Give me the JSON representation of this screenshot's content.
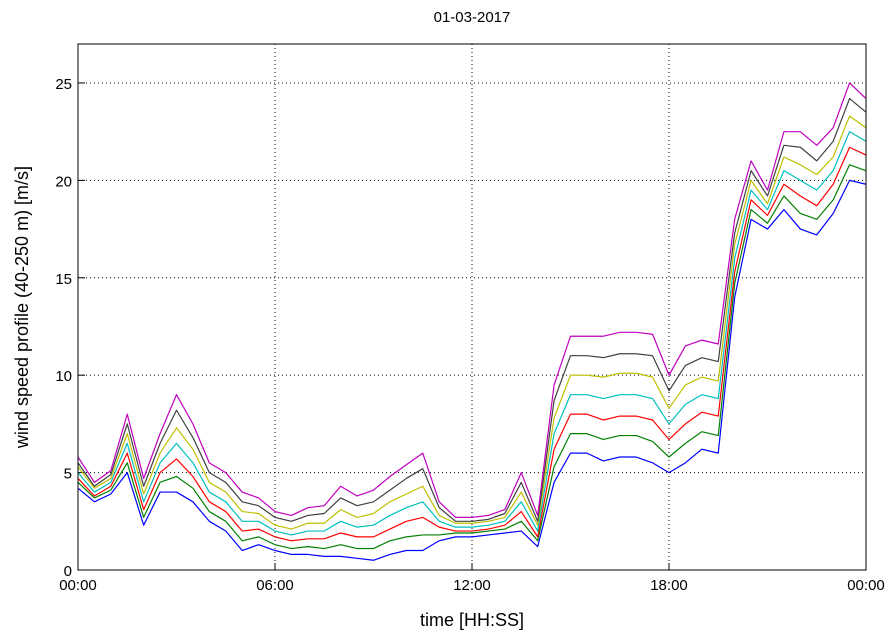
{
  "chart_data": {
    "type": "line",
    "title": "01-03-2017",
    "xlabel": "time  [HH:SS]",
    "ylabel": "wind speed profile (40-250 m) [m/s]",
    "x": [
      0,
      0.5,
      1,
      1.5,
      2,
      2.5,
      3,
      3.5,
      4,
      4.5,
      5,
      5.5,
      6,
      6.5,
      7,
      7.5,
      8,
      8.5,
      9,
      9.5,
      10,
      10.5,
      11,
      11.5,
      12,
      12.5,
      13,
      13.5,
      14,
      14.5,
      15,
      15.5,
      16,
      16.5,
      17,
      17.5,
      18,
      18.5,
      19,
      19.5,
      20,
      20.5,
      21,
      21.5,
      22,
      22.5,
      23,
      23.5,
      24
    ],
    "series": [
      {
        "color": "#0000ff",
        "values": [
          4.2,
          3.5,
          3.9,
          5.0,
          2.3,
          4.0,
          4.0,
          3.5,
          2.5,
          2.0,
          1.0,
          1.3,
          1.0,
          0.8,
          0.8,
          0.7,
          0.7,
          0.6,
          0.5,
          0.8,
          1.0,
          1.0,
          1.5,
          1.7,
          1.7,
          1.8,
          1.9,
          2.0,
          1.2,
          4.5,
          6.0,
          6.0,
          5.6,
          5.8,
          5.8,
          5.5,
          5.0,
          5.5,
          6.2,
          6.0,
          14.0,
          18.0,
          17.5,
          18.5,
          17.5,
          17.2,
          18.3,
          20.0,
          19.8
        ]
      },
      {
        "color": "#008000",
        "values": [
          4.5,
          3.7,
          4.1,
          5.5,
          2.7,
          4.5,
          4.8,
          4.2,
          3.0,
          2.5,
          1.5,
          1.7,
          1.3,
          1.1,
          1.2,
          1.1,
          1.3,
          1.1,
          1.1,
          1.5,
          1.7,
          1.8,
          1.8,
          1.9,
          1.9,
          2.0,
          2.1,
          2.5,
          1.5,
          5.3,
          7.0,
          7.0,
          6.7,
          6.9,
          6.9,
          6.6,
          5.8,
          6.5,
          7.1,
          6.9,
          14.7,
          18.5,
          17.8,
          19.2,
          18.3,
          18.0,
          19.0,
          20.8,
          20.5
        ]
      },
      {
        "color": "#ff0000",
        "values": [
          4.7,
          3.8,
          4.3,
          6.0,
          3.1,
          5.0,
          5.7,
          4.8,
          3.5,
          3.0,
          2.0,
          2.1,
          1.7,
          1.5,
          1.6,
          1.6,
          1.9,
          1.7,
          1.7,
          2.1,
          2.5,
          2.7,
          2.2,
          2.0,
          2.0,
          2.1,
          2.3,
          3.0,
          1.7,
          6.2,
          8.0,
          8.0,
          7.7,
          7.9,
          7.9,
          7.7,
          6.7,
          7.5,
          8.1,
          7.9,
          15.3,
          19.0,
          18.2,
          19.8,
          19.2,
          18.7,
          19.8,
          21.7,
          21.3
        ]
      },
      {
        "color": "#00bfbf",
        "values": [
          5.0,
          4.0,
          4.5,
          6.5,
          3.5,
          5.5,
          6.5,
          5.5,
          4.0,
          3.5,
          2.5,
          2.5,
          2.0,
          1.8,
          2.0,
          2.0,
          2.5,
          2.2,
          2.3,
          2.8,
          3.2,
          3.5,
          2.5,
          2.2,
          2.2,
          2.3,
          2.5,
          3.5,
          2.0,
          7.0,
          9.0,
          9.0,
          8.8,
          9.0,
          9.0,
          8.8,
          7.5,
          8.5,
          9.0,
          8.8,
          16.0,
          19.5,
          18.5,
          20.5,
          20.0,
          19.5,
          20.5,
          22.5,
          22.0
        ]
      },
      {
        "color": "#bfbf00",
        "values": [
          5.3,
          4.2,
          4.7,
          7.0,
          3.9,
          6.0,
          7.3,
          6.2,
          4.5,
          4.0,
          3.0,
          2.9,
          2.3,
          2.1,
          2.4,
          2.4,
          3.1,
          2.7,
          2.9,
          3.5,
          3.9,
          4.3,
          2.8,
          2.4,
          2.4,
          2.5,
          2.7,
          4.0,
          2.3,
          7.8,
          10.0,
          10.0,
          9.9,
          10.1,
          10.1,
          9.9,
          8.3,
          9.5,
          9.9,
          9.7,
          16.7,
          20.0,
          18.8,
          21.2,
          20.8,
          20.3,
          21.2,
          23.3,
          22.7
        ]
      },
      {
        "color": "#404040",
        "values": [
          5.5,
          4.3,
          4.9,
          7.5,
          4.3,
          6.5,
          8.2,
          6.8,
          5.0,
          4.5,
          3.5,
          3.3,
          2.7,
          2.5,
          2.8,
          2.9,
          3.7,
          3.3,
          3.5,
          4.1,
          4.7,
          5.2,
          3.2,
          2.5,
          2.5,
          2.6,
          2.9,
          4.5,
          2.5,
          8.7,
          11.0,
          11.0,
          10.9,
          11.1,
          11.1,
          11.0,
          9.2,
          10.5,
          10.9,
          10.7,
          17.3,
          20.5,
          19.2,
          21.8,
          21.7,
          21.0,
          22.0,
          24.2,
          23.5
        ]
      },
      {
        "color": "#bf00bf",
        "values": [
          5.8,
          4.5,
          5.1,
          8.0,
          4.7,
          7.0,
          9.0,
          7.5,
          5.5,
          5.0,
          4.0,
          3.7,
          3.0,
          2.8,
          3.2,
          3.3,
          4.3,
          3.8,
          4.1,
          4.8,
          5.4,
          6.0,
          3.5,
          2.7,
          2.7,
          2.8,
          3.1,
          5.0,
          2.8,
          9.5,
          12.0,
          12.0,
          12.0,
          12.2,
          12.2,
          12.1,
          10.0,
          11.5,
          11.8,
          11.6,
          18.0,
          21.0,
          19.5,
          22.5,
          22.5,
          21.8,
          22.7,
          25.0,
          24.2
        ]
      }
    ],
    "xlim": [
      0,
      24
    ],
    "xticks": [
      {
        "value": 0,
        "label": "00:00"
      },
      {
        "value": 6,
        "label": "06:00"
      },
      {
        "value": 12,
        "label": "12:00"
      },
      {
        "value": 18,
        "label": "18:00"
      },
      {
        "value": 24,
        "label": "00:00"
      }
    ],
    "ylim": [
      0,
      27
    ],
    "yticks": [
      0,
      5,
      10,
      15,
      20,
      25
    ],
    "grid": true
  }
}
